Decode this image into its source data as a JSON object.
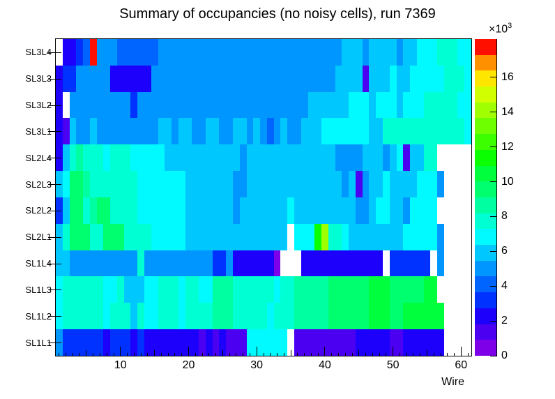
{
  "title": "Summary of occupancies (no noisy cells), run 7369",
  "x_axis": {
    "label": "Wire",
    "major_ticks": [
      10,
      20,
      30,
      40,
      50,
      60
    ],
    "min": 1,
    "max": 61
  },
  "y_axis": {
    "labels_top_to_bottom": [
      "SL3L4",
      "SL3L3",
      "SL3L2",
      "SL3L1",
      "SL2L4",
      "SL2L3",
      "SL2L2",
      "SL2L1",
      "SL1L4",
      "SL1L3",
      "SL1L2",
      "SL1L1"
    ]
  },
  "colorbar": {
    "exponent_base": "×10",
    "exponent_power": "3",
    "tick_values_thousands": [
      0,
      2,
      4,
      6,
      8,
      10,
      12,
      14,
      16
    ],
    "zmax": 18200
  },
  "chart_data": {
    "type": "heatmap",
    "title": "Summary of occupancies (no noisy cells), run 7369",
    "xlabel": "Wire",
    "ylabel": "",
    "x_bins": {
      "first_wire": 1,
      "last_wire": 61
    },
    "x_major_ticks": [
      10,
      20,
      30,
      40,
      50,
      60
    ],
    "z_scale": {
      "exponent": "×10³",
      "ticks_thousands": [
        0,
        2,
        4,
        6,
        8,
        10,
        12,
        14,
        16
      ],
      "zmax": 18200,
      "level_size": 910
    },
    "palette": [
      "#7d00e8",
      "#4c00f2",
      "#1c00fc",
      "#0032ff",
      "#0064ff",
      "#0096ff",
      "#00c8ff",
      "#00faff",
      "#00ffd2",
      "#00ffa0",
      "#00ff6e",
      "#00ff3c",
      "#0aff00",
      "#3cff00",
      "#6eff00",
      "#a0ff00",
      "#d2ff00",
      "#ffe600",
      "#ff9100",
      "#ff0f00"
    ],
    "encoding": "Each row string has 61 chars = wires 1..61. Char is palette index 0-9,A=10..J=19; '.' = empty (white) bin. Occupancy value approx (index+0.5)*910 counts.",
    "rows": [
      {
        "label": "SL3L4",
        "cells": ".2234J5554444445555555555555555555555555556665666656677788877"
      },
      {
        "label": "SL3L3",
        "cells": "2335555522222255555555555555555555555555566661666766777778 8877"
      },
      {
        "label": "SL3L2",
        "cells": "2.5555555553555555555555555555555555566666677767776777888 8877"
      },
      {
        "label": "SL3L1",
        "cells": "21655655555555566566556655665654565566677777776688888888888 87."
      },
      {
        "label": "SL2L4",
        "cells": "2689888788877777666666666665666666666666655556665671668 8......"
      },
      {
        "label": "SL2L3",
        "cells": "67AA98888888777777766666665566666666666666561566766667775 ....."
      },
      {
        "label": "SL2L2",
        "cells": "36AA89AA888877777776666666566666667666666666556776657777 ....."
      },
      {
        "label": "SL2L1",
        "cells": "68AAA88AAA888877777666666666666666.777CF887666666667777 75..."
      },
      {
        "label": "SL1L4",
        "cells": "6655555555558555555555533522222 20...222222222222.333333.5...."
      },
      {
        "label": "SL1L3",
        "cells": "78888887786667788878877999888888788999 99AAAAAABBBAAAAABB....."
      },
      {
        "label": "SL1L2",
        "cells": "788888878886877888788889998888878889999 9AAAAAABBBAABBBBBB...."
      },
      {
        "label": "SL1L1",
        "cells": "533333323332322222222121211177777 7.11111111122222112222 22...."
      }
    ]
  }
}
